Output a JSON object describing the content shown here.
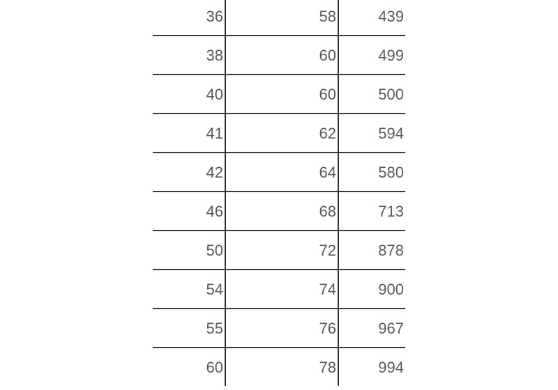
{
  "table": {
    "rows": [
      [
        "36",
        "58",
        "439"
      ],
      [
        "38",
        "60",
        "499"
      ],
      [
        "40",
        "60",
        "500"
      ],
      [
        "41",
        "62",
        "594"
      ],
      [
        "42",
        "64",
        "580"
      ],
      [
        "46",
        "68",
        "713"
      ],
      [
        "50",
        "72",
        "878"
      ],
      [
        "54",
        "74",
        "900"
      ],
      [
        "55",
        "76",
        "967"
      ],
      [
        "60",
        "78",
        "994"
      ]
    ]
  }
}
